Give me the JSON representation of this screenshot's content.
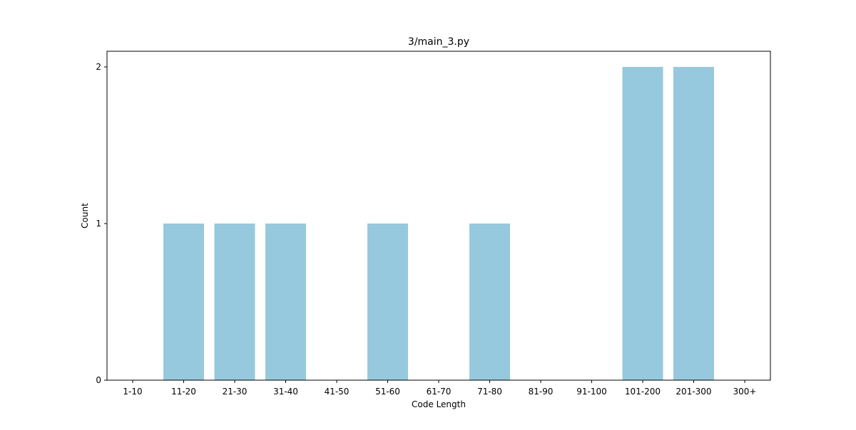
{
  "chart_data": {
    "type": "bar",
    "title": "3/main_3.py",
    "xlabel": "Code Length",
    "ylabel": "Count",
    "categories": [
      "1-10",
      "11-20",
      "21-30",
      "31-40",
      "41-50",
      "51-60",
      "61-70",
      "71-80",
      "81-90",
      "91-100",
      "101-200",
      "201-300",
      "300+"
    ],
    "values": [
      0,
      1,
      1,
      1,
      0,
      1,
      0,
      1,
      0,
      0,
      2,
      2,
      0
    ],
    "ylim": [
      0,
      2.1
    ],
    "yticks": [
      0,
      1,
      2
    ],
    "grid": false,
    "legend": "none",
    "colors": {
      "bar": "#96c9dd",
      "axis": "#000000"
    }
  }
}
